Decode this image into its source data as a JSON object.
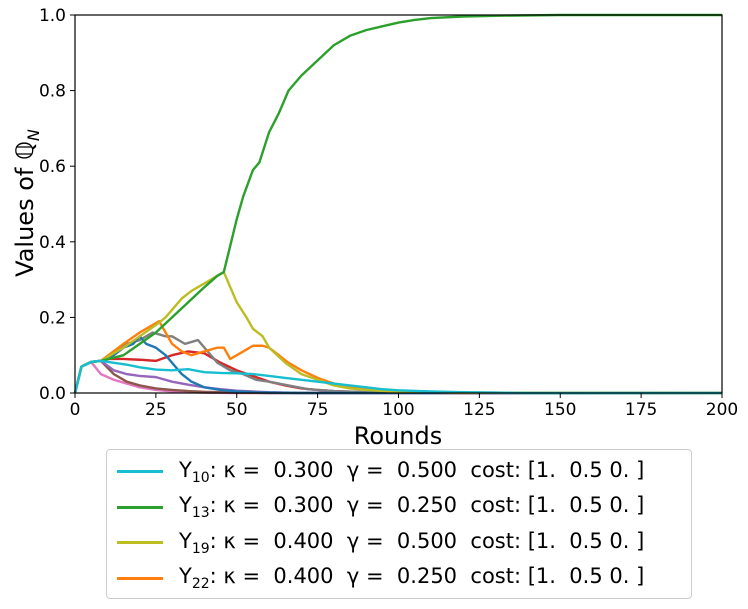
{
  "chart_data": {
    "type": "line",
    "xlabel": "Rounds",
    "ylabel": "Values of ℚ",
    "ylabel_subscript": "N",
    "xlim": [
      0,
      200
    ],
    "ylim": [
      0,
      1.0
    ],
    "xticks": [
      "0",
      "25",
      "50",
      "75",
      "100",
      "125",
      "150",
      "175",
      "200"
    ],
    "yticks": [
      "0.0",
      "0.2",
      "0.4",
      "0.6",
      "0.8",
      "1.0"
    ],
    "grid": false,
    "legend_position": "below",
    "series": [
      {
        "name": "Y10: κ = 0.300 γ = 0.500 cost: [1. 0.5 0. ]",
        "legend": {
          "base": "Y",
          "sub": "10",
          "text": ": κ =  0.300  γ =  0.500  cost: [1.  0.5 0. ]"
        },
        "color": "#17becf",
        "x": [
          0,
          2,
          5,
          8,
          12,
          16,
          20,
          25,
          30,
          35,
          40,
          45,
          50,
          55,
          60,
          65,
          70,
          75,
          80,
          85,
          90,
          95,
          100,
          110,
          120,
          130,
          140,
          160,
          200
        ],
        "y": [
          0,
          0.07,
          0.082,
          0.085,
          0.08,
          0.075,
          0.068,
          0.062,
          0.06,
          0.063,
          0.055,
          0.053,
          0.052,
          0.05,
          0.045,
          0.04,
          0.035,
          0.03,
          0.025,
          0.02,
          0.015,
          0.01,
          0.007,
          0.004,
          0.002,
          0.001,
          0.0,
          0.0,
          0.0
        ]
      },
      {
        "name": "Y13: κ = 0.300 γ = 0.250 cost: [1. 0.5 0. ]",
        "legend": {
          "base": "Y",
          "sub": "13",
          "text": ": κ =  0.300  γ =  0.250  cost: [1.  0.5 0. ]"
        },
        "color": "#2ca02c",
        "x": [
          0,
          2,
          5,
          8,
          15,
          20,
          25,
          30,
          35,
          40,
          44,
          46,
          48,
          50,
          52,
          55,
          57,
          60,
          63,
          66,
          70,
          75,
          80,
          85,
          90,
          95,
          100,
          105,
          110,
          120,
          130,
          140,
          150,
          175,
          200
        ],
        "y": [
          0,
          0.07,
          0.082,
          0.085,
          0.1,
          0.13,
          0.16,
          0.2,
          0.24,
          0.28,
          0.31,
          0.32,
          0.39,
          0.46,
          0.52,
          0.59,
          0.61,
          0.69,
          0.74,
          0.8,
          0.84,
          0.88,
          0.92,
          0.945,
          0.96,
          0.97,
          0.98,
          0.987,
          0.992,
          0.996,
          0.998,
          0.999,
          1.0,
          1.0,
          1.0
        ]
      },
      {
        "name": "Y19: κ = 0.400 γ = 0.500 cost: [1. 0.5 0. ]",
        "legend": {
          "base": "Y",
          "sub": "19",
          "text": ": κ =  0.400  γ =  0.500  cost: [1.  0.5 0. ]"
        },
        "color": "#bcbd22",
        "x": [
          0,
          2,
          5,
          8,
          15,
          20,
          25,
          28,
          30,
          33,
          36,
          40,
          44,
          46,
          48,
          50,
          53,
          55,
          58,
          60,
          65,
          70,
          75,
          80,
          85,
          90,
          100,
          120,
          200
        ],
        "y": [
          0,
          0.07,
          0.082,
          0.085,
          0.12,
          0.15,
          0.18,
          0.2,
          0.22,
          0.25,
          0.27,
          0.29,
          0.31,
          0.32,
          0.28,
          0.24,
          0.2,
          0.17,
          0.15,
          0.12,
          0.08,
          0.05,
          0.035,
          0.02,
          0.012,
          0.008,
          0.003,
          0.001,
          0.0
        ]
      },
      {
        "name": "Y22: κ = 0.400 γ = 0.250 cost: [1. 0.5 0. ]",
        "legend": {
          "base": "Y",
          "sub": "22",
          "text": ": κ =  0.400  γ =  0.250  cost: [1.  0.5 0. ]"
        },
        "color": "#ff7f0e",
        "x": [
          0,
          2,
          5,
          8,
          15,
          20,
          26,
          28,
          30,
          33,
          36,
          40,
          44,
          46,
          48,
          50,
          53,
          55,
          58,
          60,
          63,
          66,
          70,
          75,
          80,
          85,
          90,
          100,
          120,
          200
        ],
        "y": [
          0,
          0.07,
          0.082,
          0.085,
          0.13,
          0.16,
          0.19,
          0.16,
          0.13,
          0.11,
          0.1,
          0.11,
          0.12,
          0.12,
          0.09,
          0.1,
          0.115,
          0.125,
          0.125,
          0.12,
          0.1,
          0.08,
          0.06,
          0.04,
          0.025,
          0.015,
          0.01,
          0.004,
          0.001,
          0.0
        ]
      },
      {
        "color": "#1f77b4",
        "x": [
          0,
          2,
          5,
          8,
          12,
          15,
          18,
          20,
          22,
          25,
          28,
          30,
          33,
          36,
          40,
          45,
          50,
          55,
          60,
          70,
          200
        ],
        "y": [
          0,
          0.07,
          0.082,
          0.085,
          0.1,
          0.12,
          0.13,
          0.15,
          0.13,
          0.12,
          0.1,
          0.08,
          0.05,
          0.03,
          0.015,
          0.008,
          0.004,
          0.002,
          0.001,
          0.0,
          0.0
        ]
      },
      {
        "color": "#7f7f7f",
        "x": [
          0,
          2,
          5,
          8,
          12,
          16,
          20,
          24,
          28,
          30,
          34,
          38,
          40,
          44,
          48,
          52,
          56,
          60,
          66,
          72,
          80,
          90,
          100,
          200
        ],
        "y": [
          0,
          0.07,
          0.082,
          0.085,
          0.11,
          0.13,
          0.14,
          0.16,
          0.15,
          0.15,
          0.13,
          0.14,
          0.12,
          0.08,
          0.06,
          0.05,
          0.035,
          0.03,
          0.02,
          0.01,
          0.005,
          0.002,
          0.001,
          0.0
        ]
      },
      {
        "color": "#d62728",
        "x": [
          0,
          2,
          5,
          8,
          10,
          15,
          20,
          25,
          30,
          35,
          40,
          45,
          50,
          55,
          60,
          65,
          70,
          75,
          80,
          90,
          100,
          120,
          200
        ],
        "y": [
          0,
          0.07,
          0.082,
          0.085,
          0.09,
          0.09,
          0.088,
          0.085,
          0.1,
          0.11,
          0.105,
          0.08,
          0.06,
          0.045,
          0.03,
          0.02,
          0.012,
          0.008,
          0.005,
          0.002,
          0.001,
          0.0,
          0.0
        ]
      },
      {
        "color": "#9467bd",
        "x": [
          0,
          2,
          5,
          8,
          12,
          16,
          20,
          25,
          30,
          35,
          40,
          45,
          50,
          55,
          60,
          70,
          200
        ],
        "y": [
          0,
          0.07,
          0.082,
          0.085,
          0.06,
          0.05,
          0.045,
          0.042,
          0.03,
          0.022,
          0.015,
          0.01,
          0.006,
          0.004,
          0.002,
          0.0,
          0.0
        ]
      },
      {
        "color": "#8c564b",
        "x": [
          0,
          2,
          5,
          8,
          12,
          16,
          20,
          25,
          30,
          35,
          40,
          45,
          50,
          60,
          200
        ],
        "y": [
          0,
          0.07,
          0.082,
          0.085,
          0.05,
          0.03,
          0.02,
          0.012,
          0.008,
          0.005,
          0.003,
          0.002,
          0.001,
          0.0,
          0.0
        ]
      },
      {
        "color": "#e377c2",
        "x": [
          0,
          2,
          5,
          8,
          12,
          16,
          20,
          25,
          30,
          40,
          50,
          200
        ],
        "y": [
          0,
          0.07,
          0.082,
          0.05,
          0.035,
          0.025,
          0.015,
          0.008,
          0.004,
          0.001,
          0.0,
          0.0
        ]
      }
    ]
  }
}
